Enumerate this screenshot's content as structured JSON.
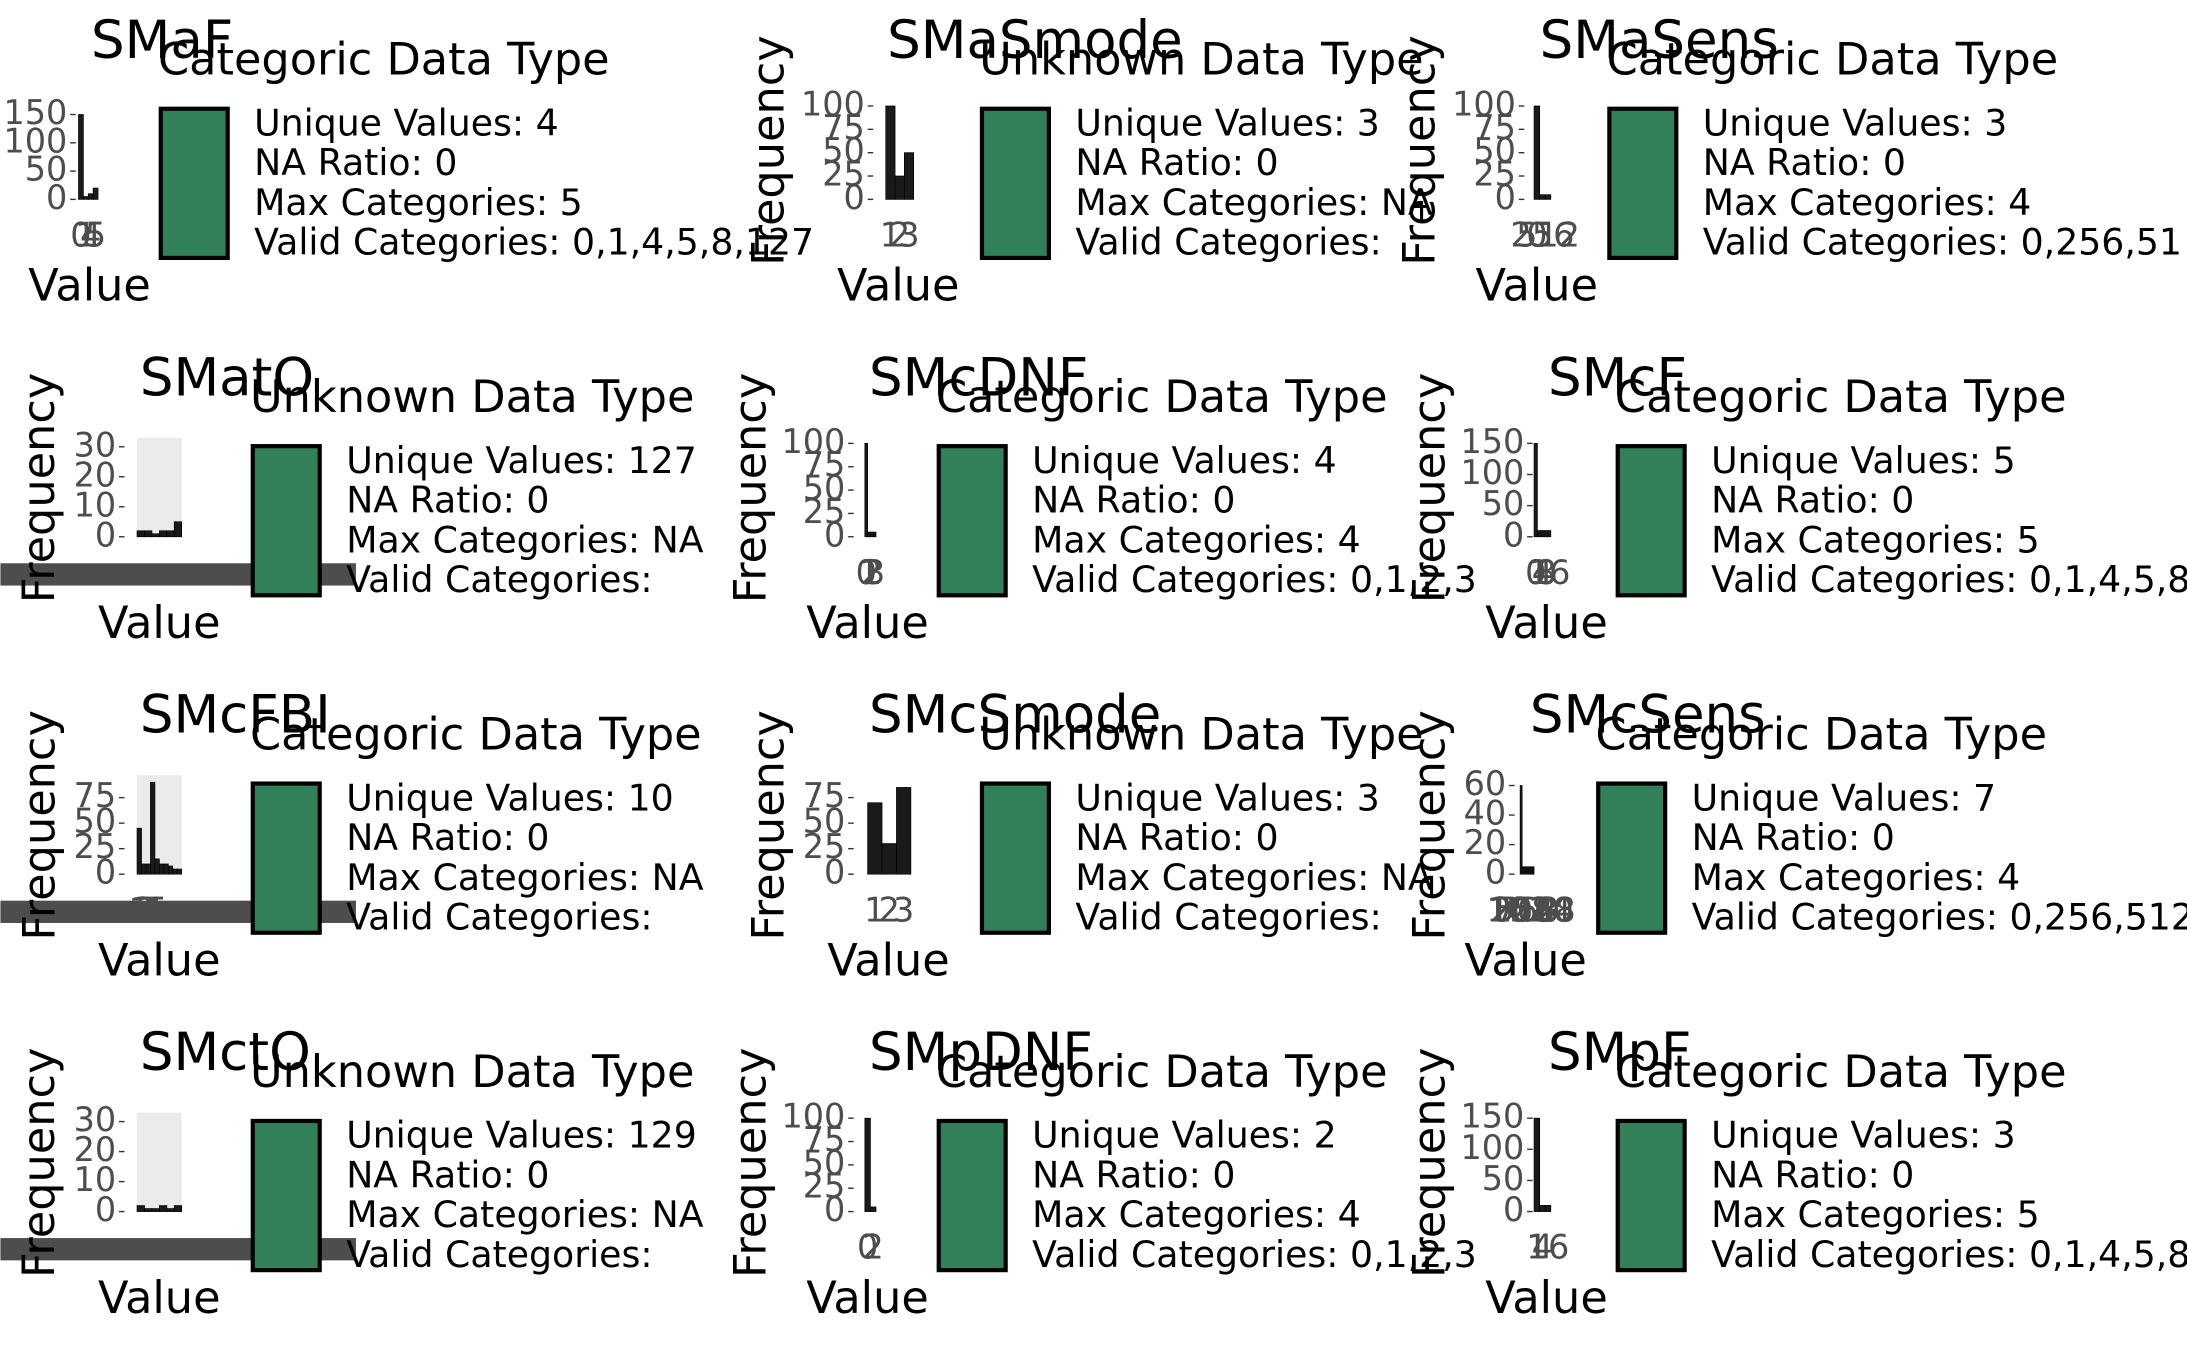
{
  "chart_data": [
    {
      "type": "bar",
      "title": "SMaF",
      "subtitle": "Categoric Data Type",
      "x_label": "Value",
      "categories": [
        "0",
        "1",
        "4",
        "5"
      ],
      "values": [
        150,
        5,
        10,
        20
      ],
      "ylim": [
        0,
        175
      ],
      "yticks": [
        0,
        50,
        100,
        150
      ],
      "color": "#1a1a1a",
      "swatch_color": "#31805a",
      "annotations": [
        "Unique Values: 4",
        "NA Ratio: 0",
        "Max Categories: 5",
        "Valid Categories: 0,1,4,5,8,127"
      ]
    },
    {
      "type": "bar",
      "title": "SMaSmode",
      "subtitle": "Unknown Data Type",
      "x_label": "Value",
      "y_label": "Frequency",
      "categories": [
        "1",
        "2",
        "3"
      ],
      "values": [
        100,
        25,
        50
      ],
      "ylim": [
        0,
        106
      ],
      "yticks": [
        0,
        25,
        50,
        75,
        100
      ],
      "color": "#1a1a1a",
      "swatch_color": "#31805a",
      "annotations": [
        "Unique Values: 3",
        "NA Ratio: 0",
        "Max Categories: NA",
        "Valid Categories:"
      ]
    },
    {
      "type": "bar",
      "title": "SMaSens",
      "subtitle": "Categoric Data Type",
      "x_label": "Value",
      "y_label": "Frequency",
      "categories": [
        "0",
        "256",
        "512"
      ],
      "values": [
        100,
        5,
        5
      ],
      "ylim": [
        0,
        106
      ],
      "yticks": [
        0,
        25,
        50,
        75,
        100
      ],
      "color": "#1a1a1a",
      "swatch_color": "#31805a",
      "annotations": [
        "Unique Values: 3",
        "NA Ratio: 0",
        "Max Categories: 4",
        "Valid Categories: 0,256,51"
      ]
    },
    {
      "type": "bar",
      "title": "SMatO",
      "subtitle": "Unknown Data Type",
      "x_label": "Value",
      "y_label": "Frequency",
      "categories": [
        null,
        null,
        null,
        null,
        null,
        null
      ],
      "values": [
        2,
        2,
        1,
        2,
        2,
        5
      ],
      "ylim": [
        0,
        33
      ],
      "yticks": [
        0,
        10,
        20,
        30
      ],
      "color": "#1a1a1a",
      "swatch_color": "#31805a",
      "panel_background": "#ebebeb",
      "annotations": [
        "Unique Values: 127",
        "NA Ratio: 0",
        "Max Categories: NA",
        "Valid Categories:"
      ]
    },
    {
      "type": "bar",
      "title": "SMcDNF",
      "subtitle": "Categoric Data Type",
      "x_label": "Value",
      "y_label": "Frequency",
      "categories": [
        "0",
        "1",
        "2",
        "3"
      ],
      "values": [
        100,
        5,
        5,
        5
      ],
      "ylim": [
        0,
        106
      ],
      "yticks": [
        0,
        25,
        50,
        75,
        100
      ],
      "color": "#1a1a1a",
      "swatch_color": "#31805a",
      "annotations": [
        "Unique Values: 4",
        "NA Ratio: 0",
        "Max Categories: 4",
        "Valid Categories: 0,1,2,3"
      ]
    },
    {
      "type": "bar",
      "title": "SMcF",
      "subtitle": "Categoric Data Type",
      "x_label": "Value",
      "y_label": "Frequency",
      "categories": [
        "0",
        "1",
        "4",
        "8",
        "16"
      ],
      "values": [
        150,
        10,
        10,
        10,
        10
      ],
      "ylim": [
        0,
        159
      ],
      "yticks": [
        0,
        50,
        100,
        150
      ],
      "color": "#1a1a1a",
      "swatch_color": "#31805a",
      "annotations": [
        "Unique Values: 5",
        "NA Ratio: 0",
        "Max Categories: 5",
        "Valid Categories: 0,1,4,5,8"
      ]
    },
    {
      "type": "bar",
      "title": "SMcFBI",
      "subtitle": "Categoric Data Type",
      "x_label": "Value",
      "y_label": "Frequency",
      "categories": [
        "1",
        "2",
        "3",
        "4",
        "5",
        null,
        null,
        null,
        null,
        null
      ],
      "values": [
        45,
        10,
        10,
        90,
        15,
        10,
        10,
        8,
        5,
        5
      ],
      "ylim": [
        0,
        97
      ],
      "yticks": [
        0,
        25,
        50,
        75
      ],
      "color": "#1a1a1a",
      "swatch_color": "#31805a",
      "panel_background": "#ebebeb",
      "annotations": [
        "Unique Values: 10",
        "NA Ratio: 0",
        "Max Categories: NA",
        "Valid Categories:"
      ]
    },
    {
      "type": "bar",
      "title": "SMcSmode",
      "subtitle": "Unknown Data Type",
      "x_label": "Value",
      "y_label": "Frequency",
      "categories": [
        "1",
        "2",
        "3"
      ],
      "values": [
        70,
        30,
        85
      ],
      "ylim": [
        0,
        97
      ],
      "yticks": [
        0,
        25,
        50,
        75
      ],
      "color": "#1a1a1a",
      "swatch_color": "#31805a",
      "annotations": [
        "Unique Values: 3",
        "NA Ratio: 0",
        "Max Categories: NA",
        "Valid Categories:"
      ]
    },
    {
      "type": "bar",
      "title": "SMcSens",
      "subtitle": "Categoric Data Type",
      "x_label": "Value",
      "y_label": "Frequency",
      "categories": [
        "0",
        "256",
        "512",
        "768",
        "1024",
        "1280",
        "2048"
      ],
      "values": [
        60,
        5,
        5,
        5,
        5,
        5,
        5
      ],
      "ylim": [
        0,
        67
      ],
      "yticks": [
        0,
        20,
        40,
        60
      ],
      "color": "#1a1a1a",
      "swatch_color": "#31805a",
      "annotations": [
        "Unique Values: 7",
        "NA Ratio: 0",
        "Max Categories: 4",
        "Valid Categories: 0,256,512"
      ]
    },
    {
      "type": "bar",
      "title": "SMctO",
      "subtitle": "Unknown Data Type",
      "x_label": "Value",
      "y_label": "Frequency",
      "categories": [
        null,
        null,
        null,
        null,
        null,
        null
      ],
      "values": [
        2,
        1,
        1,
        2,
        1,
        2
      ],
      "ylim": [
        0,
        33
      ],
      "yticks": [
        0,
        10,
        20,
        30
      ],
      "color": "#1a1a1a",
      "swatch_color": "#31805a",
      "panel_background": "#ebebeb",
      "annotations": [
        "Unique Values: 129",
        "NA Ratio: 0",
        "Max Categories: NA",
        "Valid Categories:"
      ]
    },
    {
      "type": "bar",
      "title": "SMpDNF",
      "subtitle": "Categoric Data Type",
      "x_label": "Value",
      "y_label": "Frequency",
      "categories": [
        "0",
        "2"
      ],
      "values": [
        100,
        5
      ],
      "ylim": [
        0,
        106
      ],
      "yticks": [
        0,
        25,
        50,
        75,
        100
      ],
      "color": "#1a1a1a",
      "swatch_color": "#31805a",
      "annotations": [
        "Unique Values: 2",
        "NA Ratio: 0",
        "Max Categories: 4",
        "Valid Categories: 0,1,2,3"
      ]
    },
    {
      "type": "bar",
      "title": "SMpF",
      "subtitle": "Categoric Data Type",
      "x_label": "Value",
      "y_label": "Frequency",
      "categories": [
        "1",
        "4",
        "16"
      ],
      "values": [
        150,
        10,
        10
      ],
      "ylim": [
        0,
        159
      ],
      "yticks": [
        0,
        50,
        100,
        150
      ],
      "color": "#1a1a1a",
      "swatch_color": "#31805a",
      "annotations": [
        "Unique Values: 3",
        "NA Ratio: 0",
        "Max Categories: 5",
        "Valid Categories: 0,1,4,5,8"
      ]
    }
  ]
}
